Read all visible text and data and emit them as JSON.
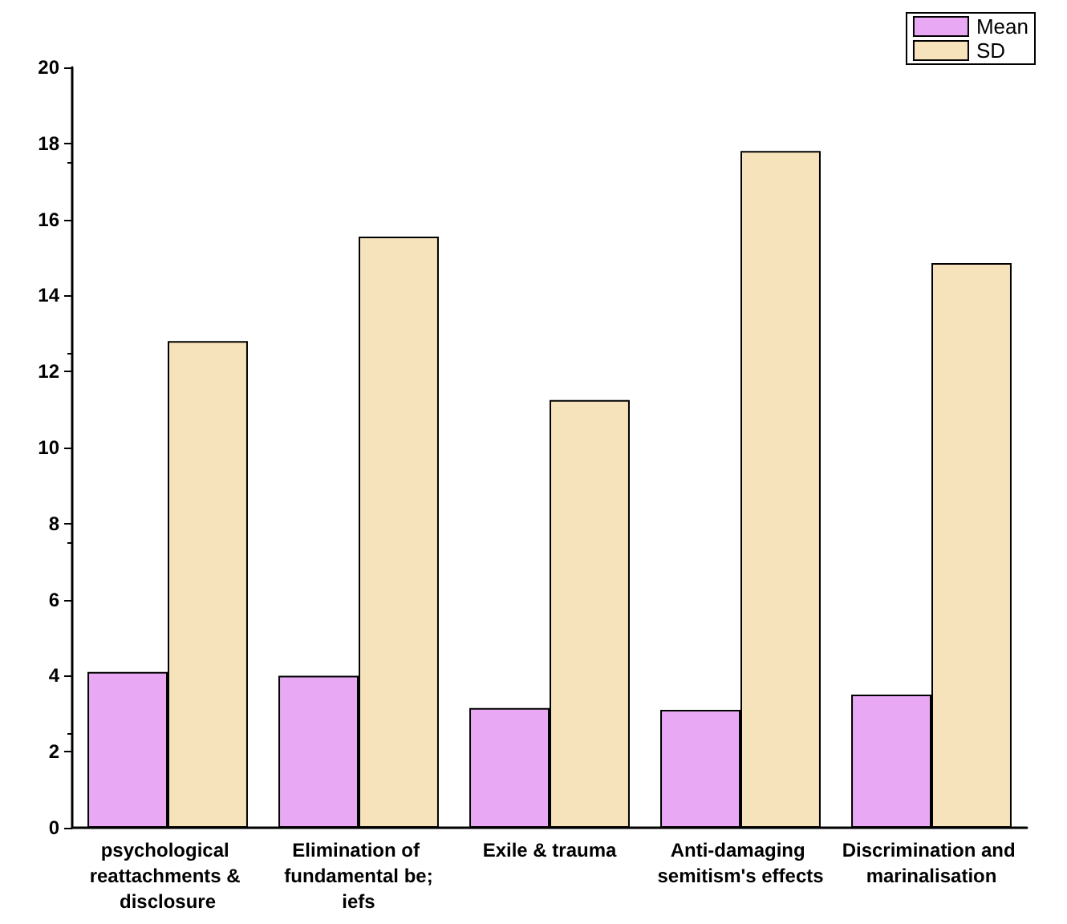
{
  "chart_data": {
    "type": "bar",
    "categories": [
      "psychological reattachments & disclosure",
      "Elimination of fundamental be;iefs",
      "Exile & trauma",
      "Anti-damaging semitism's effects",
      "Discrimination and marinalisation"
    ],
    "series": [
      {
        "name": "Mean",
        "color": "#e8a8f4",
        "values": [
          4.1,
          4.0,
          3.15,
          3.1,
          3.5
        ]
      },
      {
        "name": "SD",
        "color": "#f7e3bb",
        "values": [
          12.8,
          15.55,
          11.25,
          17.8,
          14.85
        ]
      }
    ],
    "ylim": [
      0,
      20
    ],
    "yticks": [
      0,
      2,
      4,
      6,
      8,
      10,
      12,
      14,
      16,
      18,
      20
    ],
    "grid": false,
    "legend": "top right"
  }
}
